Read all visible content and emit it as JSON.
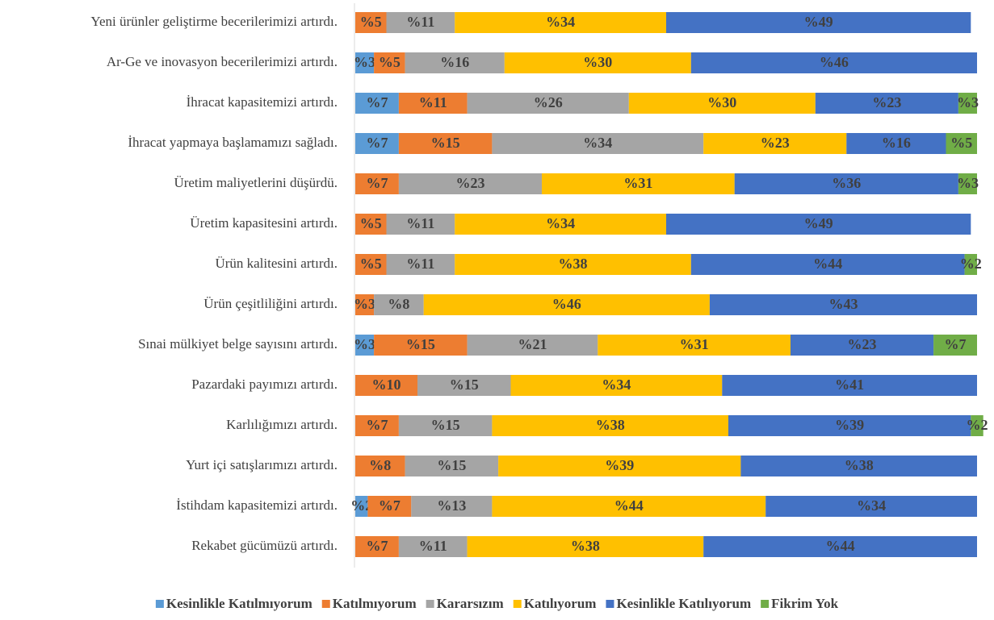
{
  "chart_data": {
    "type": "stacked-bar-horizontal",
    "categories": [
      "Yeni ürünler geliştirme becerilerimizi artırdı.",
      "Ar-Ge ve inovasyon becerilerimizi artırdı.",
      "İhracat kapasitemizi artırdı.",
      "İhracat yapmaya başlamamızı sağladı.",
      "Üretim maliyetlerini düşürdü.",
      "Üretim kapasitesini artırdı.",
      "Ürün kalitesini artırdı.",
      "Ürün çeşitliliğini artırdı.",
      "Sınai mülkiyet belge sayısını artırdı.",
      "Pazardaki payımızı artırdı.",
      "Karlılığımızı artırdı.",
      "Yurt içi satışlarımızı artırdı.",
      "İstihdam kapasitemizi artırdı.",
      "Rekabet gücümüzü artırdı."
    ],
    "xlim": [
      0,
      100
    ],
    "legend": "bottom",
    "series": [
      {
        "name": "Kesinlikle Katılmıyorum",
        "color": "#5b9bd5",
        "values": [
          null,
          3,
          7,
          7,
          null,
          null,
          null,
          null,
          3,
          null,
          null,
          null,
          2,
          null
        ],
        "value_labels": [
          null,
          "%3",
          "%7",
          "%7",
          null,
          null,
          null,
          null,
          "%3",
          null,
          null,
          null,
          "%2",
          null
        ]
      },
      {
        "name": "Katılmıyorum",
        "color": "#ed7d31",
        "values": [
          5,
          5,
          11,
          15,
          7,
          5,
          5,
          3,
          15,
          10,
          7,
          8,
          7,
          7
        ],
        "value_labels": [
          "%5",
          "%5",
          "%11",
          "%15",
          "%7",
          "%5",
          "%5",
          "%3",
          "%15",
          "%10",
          "%7",
          "%8",
          "%7",
          "%7"
        ]
      },
      {
        "name": "Kararsızım",
        "color": "#a5a5a5",
        "values": [
          11,
          16,
          26,
          34,
          23,
          11,
          11,
          8,
          21,
          15,
          15,
          15,
          13,
          11
        ],
        "value_labels": [
          "%11",
          "%16",
          "%26",
          "%34",
          "%23",
          "%11",
          "%11",
          "%8",
          "%21",
          "%15",
          "%15",
          "%15",
          "%13",
          "%11"
        ]
      },
      {
        "name": "Katılıyorum",
        "color": "#ffc000",
        "values": [
          34,
          30,
          30,
          23,
          31,
          34,
          38,
          46,
          31,
          34,
          38,
          39,
          44,
          38
        ],
        "value_labels": [
          "%34",
          "%30",
          "%30",
          "%23",
          "%31",
          "%34",
          "%38",
          "%46",
          "%31",
          "%34",
          "%38",
          "%39",
          "%44",
          "%38"
        ]
      },
      {
        "name": "Kesinlikle Katılıyorum",
        "color": "#4472c4",
        "values": [
          49,
          46,
          23,
          16,
          36,
          49,
          44,
          43,
          23,
          41,
          39,
          38,
          34,
          44
        ],
        "value_labels": [
          "%49",
          "%46",
          "%23",
          "%16",
          "%36",
          "%49",
          "%44",
          "%43",
          "%23",
          "%41",
          "%39",
          "%38",
          "%34",
          "%44"
        ]
      },
      {
        "name": "Fikrim Yok",
        "color": "#70ad47",
        "values": [
          null,
          null,
          3,
          5,
          3,
          null,
          2,
          null,
          7,
          null,
          2,
          null,
          null,
          null
        ],
        "value_labels": [
          null,
          null,
          "%3",
          "%5",
          "%3",
          null,
          "%2",
          null,
          "%7",
          null,
          "%2",
          null,
          null,
          null
        ]
      }
    ]
  }
}
